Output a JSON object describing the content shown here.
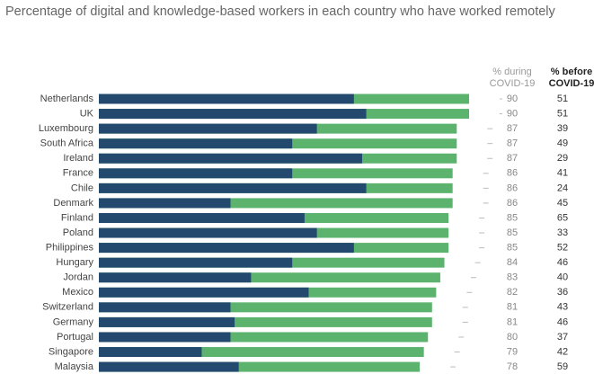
{
  "chart_data": {
    "type": "bar",
    "title": "Percentage of digital and knowledge-based workers in each country who have worked remotely",
    "categories": [
      "Netherlands",
      "UK",
      "Luxembourg",
      "South Africa",
      "Ireland",
      "France",
      "Chile",
      "Denmark",
      "Finland",
      "Poland",
      "Philippines",
      "Hungary",
      "Jordan",
      "Mexico",
      "Switzerland",
      "Germany",
      "Portugal",
      "Singapore",
      "Malaysia"
    ],
    "series": [
      {
        "name": [
          "% during",
          "COVID-19"
        ],
        "color": "#5cb36e",
        "values": [
          90,
          90,
          87,
          87,
          87,
          86,
          86,
          86,
          85,
          85,
          85,
          84,
          83,
          82,
          81,
          81,
          80,
          79,
          78
        ]
      },
      {
        "color": "#234a6e",
        "values": [
          62,
          65,
          53,
          47,
          64,
          47,
          65,
          32,
          50,
          53,
          62,
          47,
          37,
          51,
          32,
          33,
          32,
          25,
          34
        ]
      }
    ],
    "before": {
      "name": [
        "% before",
        "COVID-19"
      ],
      "values": [
        51,
        51,
        39,
        49,
        29,
        41,
        24,
        45,
        65,
        33,
        52,
        46,
        40,
        36,
        43,
        46,
        37,
        42,
        59
      ]
    },
    "xlim": [
      0,
      90
    ]
  }
}
